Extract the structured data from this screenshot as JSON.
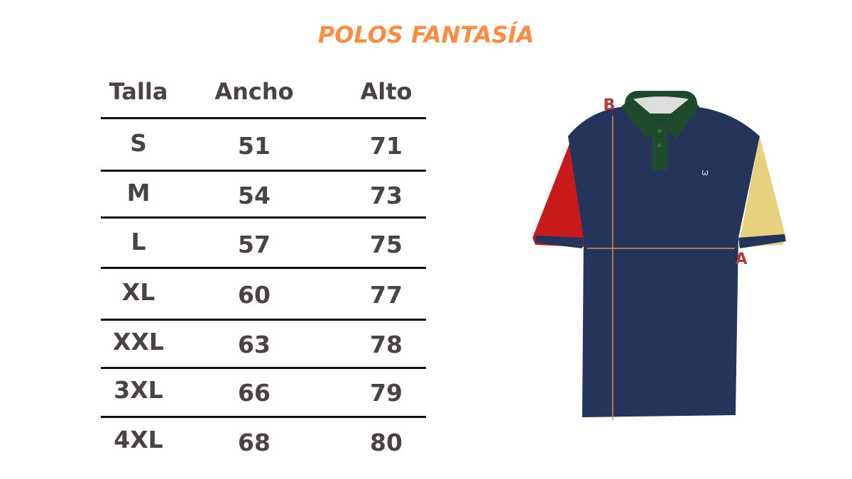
{
  "title": "POLOS FANTASÍA",
  "table": {
    "headers": [
      "Talla",
      "Ancho",
      "Alto"
    ],
    "rows": [
      [
        "S",
        "51",
        "71"
      ],
      [
        "M",
        "54",
        "73"
      ],
      [
        "L",
        "57",
        "75"
      ],
      [
        "XL",
        "60",
        "77"
      ],
      [
        "XXL",
        "63",
        "78"
      ],
      [
        "3XL",
        "66",
        "79"
      ],
      [
        "4XL",
        "68",
        "80"
      ]
    ]
  },
  "diagram": {
    "label_width": "A",
    "label_length": "B"
  },
  "colors": {
    "title": "#ff8c45",
    "text": "#4a4344",
    "body": "#24345a",
    "collar": "#1f4a2c",
    "left_sleeve": "#c81a1a",
    "right_sleeve": "#e6d27e",
    "measure_line": "#e08a50",
    "measure_label": "#b03a3a"
  }
}
